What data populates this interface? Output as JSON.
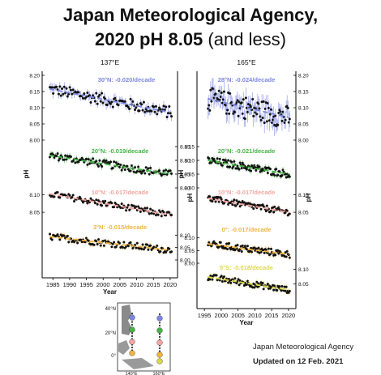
{
  "title": {
    "line1": "Japan Meteorological  Agency,",
    "line2_bold": "2020 pH 8.05",
    "line2_rest": " (and less)"
  },
  "credit": {
    "line1": "Japan Meteorological  Agency",
    "line2": "Updated on 12 Feb. 2021"
  },
  "map": {
    "lat_labels": [
      "40°N",
      "20°N",
      "0°"
    ],
    "lon_labels": [
      "140°E",
      "160°E"
    ]
  },
  "colors": {
    "blue": "#7b86e0",
    "green": "#46b346",
    "pink": "#f2a6a0",
    "orange": "#f0b440",
    "yellow": "#dcd84a",
    "dot": "#111111"
  },
  "chart_data": [
    {
      "type": "scatter",
      "title": "137°E",
      "xlabel": "Year",
      "ylabel": "pH",
      "xlim": [
        1983,
        2021
      ],
      "x_ticks": [
        "1985",
        "1990",
        "1995",
        "2000",
        "2005",
        "2010",
        "2015",
        "2020"
      ],
      "grid": false,
      "series": [
        {
          "name": "30°N: -0.020/decade",
          "color": "#7b86e0",
          "trend_per_decade": -0.02,
          "years": [
            1984,
            2020
          ],
          "trend_start": 8.158,
          "trend_end": 8.086,
          "ylim": [
            8.0,
            8.2
          ],
          "y_ticks": [
            "8.00",
            "8.05",
            "8.10",
            "8.15",
            "8.20"
          ],
          "y_axis": "left"
        },
        {
          "name": "20°N: -0.019/decade",
          "color": "#46b346",
          "trend_per_decade": -0.019,
          "years": [
            1984,
            2020
          ],
          "trend_start": 8.118,
          "trend_end": 8.05,
          "ylim": [
            8.0,
            8.15
          ],
          "y_ticks": [
            "8.00",
            "8.05",
            "8.10",
            "8.15"
          ],
          "y_axis": "right"
        },
        {
          "name": "10°N: -0.017/decade",
          "color": "#f2a6a0",
          "trend_per_decade": -0.017,
          "years": [
            1984,
            2020
          ],
          "trend_start": 8.103,
          "trend_end": 8.042,
          "ylim": [
            8.02,
            8.12
          ],
          "y_ticks": [
            "8.05",
            "8.10"
          ],
          "y_axis": "left"
        },
        {
          "name": "3°N: -0.015/decade",
          "color": "#f0b440",
          "trend_per_decade": -0.015,
          "years": [
            1984,
            2020
          ],
          "trend_start": 8.094,
          "trend_end": 8.04,
          "ylim": [
            8.0,
            8.15
          ],
          "y_ticks": [
            "8.00",
            "8.05",
            "8.10"
          ],
          "y_axis": "right"
        }
      ]
    },
    {
      "type": "scatter",
      "title": "165°E",
      "xlabel": "Year",
      "ylabel": "pH",
      "xlim": [
        1994,
        2021
      ],
      "x_ticks": [
        "1995",
        "2000",
        "2005",
        "2010",
        "2015",
        "2020"
      ],
      "grid": false,
      "series": [
        {
          "name": "28°N: -0.024/decade",
          "color": "#7b86e0",
          "trend_per_decade": -0.024,
          "years": [
            1996,
            2020
          ],
          "trend_start": 8.128,
          "trend_end": 8.07,
          "ylim": [
            8.0,
            8.2
          ],
          "y_ticks": [
            "8.00",
            "8.05",
            "8.10",
            "8.15",
            "8.20"
          ],
          "y_axis": "right"
        },
        {
          "name": "20°N: -0.021/decade",
          "color": "#46b346",
          "trend_per_decade": -0.021,
          "years": [
            1996,
            2020
          ],
          "trend_start": 8.1,
          "trend_end": 8.05,
          "ylim": [
            8.0,
            8.15
          ],
          "y_ticks": [
            "8.00",
            "8.05",
            "8.10",
            "8.15"
          ],
          "y_axis": "left"
        },
        {
          "name": "10°N: -0.017/decade",
          "color": "#f2a6a0",
          "trend_per_decade": -0.017,
          "years": [
            1996,
            2020
          ],
          "trend_start": 8.09,
          "trend_end": 8.05,
          "ylim": [
            8.02,
            8.12
          ],
          "y_ticks": [
            "8.05",
            "8.10"
          ],
          "y_axis": "right"
        },
        {
          "name": "0°: -0.017/decade",
          "color": "#f0b440",
          "trend_per_decade": -0.017,
          "years": [
            1996,
            2020
          ],
          "trend_start": 8.076,
          "trend_end": 8.035,
          "ylim": [
            8.0,
            8.15
          ],
          "y_ticks": [
            "8.00",
            "8.05",
            "8.10"
          ],
          "y_axis": "left"
        },
        {
          "name": "5°S: -0.018/decade",
          "color": "#dcd84a",
          "trend_per_decade": -0.018,
          "years": [
            1996,
            2020
          ],
          "trend_start": 8.074,
          "trend_end": 8.03,
          "ylim": [
            8.0,
            8.12
          ],
          "y_ticks": [
            "8.05",
            "8.10"
          ],
          "y_axis": "right"
        }
      ]
    }
  ]
}
